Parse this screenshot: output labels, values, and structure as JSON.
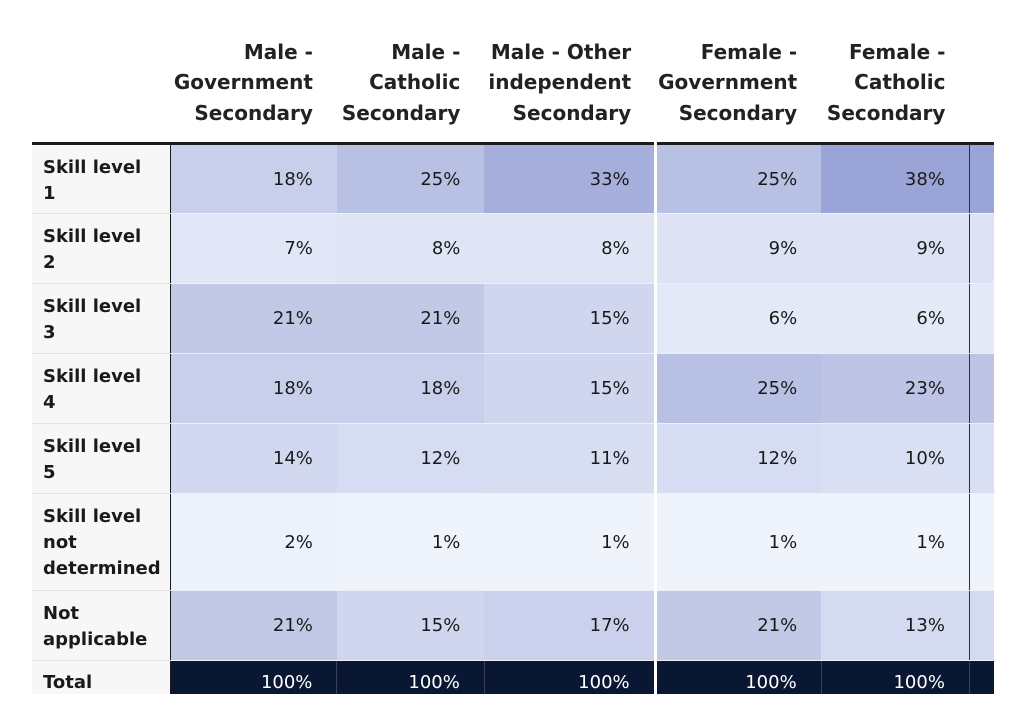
{
  "chart_data": {
    "type": "table",
    "columns": [
      [
        "Male -",
        "Government",
        "Secondary"
      ],
      [
        "Male -",
        "Catholic",
        "Secondary"
      ],
      [
        "Male - Other",
        "independent",
        "Secondary"
      ],
      [
        "Female -",
        "Government",
        "Secondary"
      ],
      [
        "Female -",
        "Catholic",
        "Secondary"
      ]
    ],
    "rows": [
      {
        "label": [
          "Skill level",
          "1"
        ],
        "values": [
          "18%",
          "25%",
          "33%",
          "25%",
          "38%"
        ]
      },
      {
        "label": [
          "Skill level",
          "2"
        ],
        "values": [
          "7%",
          "8%",
          "8%",
          "9%",
          "9%"
        ]
      },
      {
        "label": [
          "Skill level",
          "3"
        ],
        "values": [
          "21%",
          "21%",
          "15%",
          "6%",
          "6%"
        ]
      },
      {
        "label": [
          "Skill level",
          "4"
        ],
        "values": [
          "18%",
          "18%",
          "15%",
          "25%",
          "23%"
        ]
      },
      {
        "label": [
          "Skill level",
          "5"
        ],
        "values": [
          "14%",
          "12%",
          "11%",
          "12%",
          "10%"
        ]
      },
      {
        "label": [
          "Skill level",
          "not",
          "determined"
        ],
        "values": [
          "2%",
          "1%",
          "1%",
          "1%",
          "1%"
        ]
      },
      {
        "label": [
          "Not",
          "applicable"
        ],
        "values": [
          "21%",
          "15%",
          "17%",
          "21%",
          "13%"
        ]
      }
    ],
    "total": {
      "label": "Total",
      "values": [
        "100%",
        "100%",
        "100%",
        "100%",
        "100%"
      ]
    },
    "heat_colors": {
      "low": "#f1f6fd",
      "high": "#9ba4d6"
    }
  }
}
